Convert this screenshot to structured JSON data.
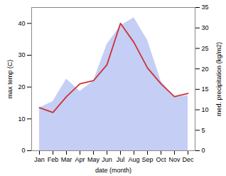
{
  "chart_data": {
    "type": "line",
    "xlabel": "date (month)",
    "ylabel": "max temp (C)",
    "y2label": "med. precipitation (kg/m2)",
    "categories": [
      "Jan",
      "Feb",
      "Mar",
      "Apr",
      "May",
      "Jun",
      "Jul",
      "Aug",
      "Sep",
      "Oct",
      "Nov",
      "Dec"
    ],
    "series": [
      {
        "type": "area",
        "axis": "y2",
        "color": "#c5cef5",
        "values": [
          10.5,
          12.0,
          17.5,
          14.5,
          17.0,
          26.0,
          30.5,
          32.5,
          27.0,
          17.0,
          13.0,
          13.5
        ]
      },
      {
        "type": "line",
        "color": "#cc3333",
        "values": [
          13.5,
          12.0,
          17.0,
          21.0,
          22.0,
          27.0,
          40.0,
          34.0,
          26.0,
          21.0,
          17.0,
          18.0
        ]
      }
    ],
    "ylim": [
      0,
      45
    ],
    "yticks": [
      0,
      10,
      20,
      30,
      40
    ],
    "y2lim": [
      0,
      35
    ],
    "y2ticks": [
      0,
      5,
      10,
      15,
      20,
      25,
      30,
      35
    ],
    "grid": false
  }
}
